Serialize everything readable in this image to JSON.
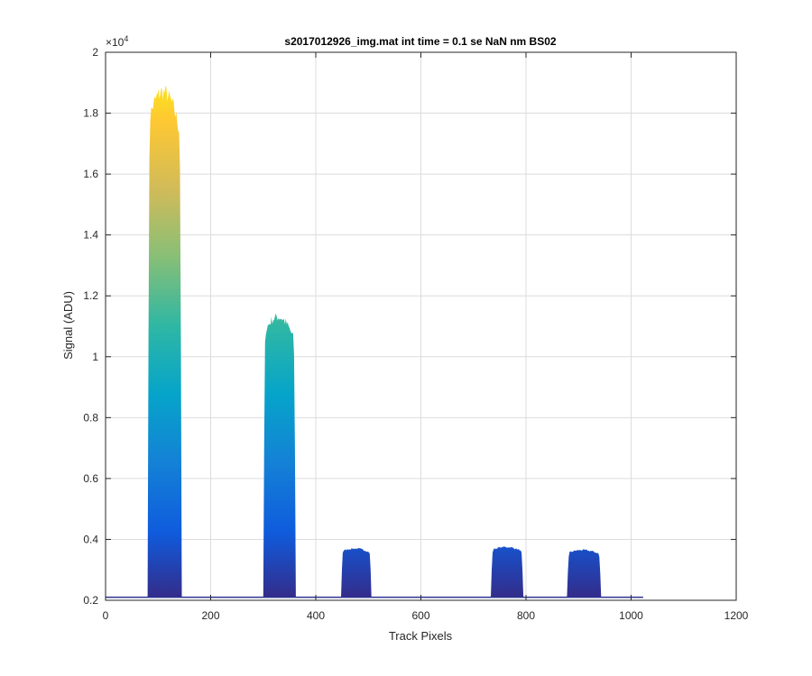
{
  "chart_data": {
    "type": "area",
    "title": "s2017012926_img.mat int time = 0.1 se  NaN nm BS02",
    "xlabel": "Track Pixels",
    "ylabel": "Signal (ADU)",
    "exponent_label": "×10",
    "exponent_power": "4",
    "xlim": [
      0,
      1200
    ],
    "ylim": [
      0.2,
      2.0
    ],
    "y_scale_factor": 10000,
    "grid": true,
    "x_ticks": [
      0,
      200,
      400,
      600,
      800,
      1000,
      1200
    ],
    "x_tick_labels": [
      "0",
      "200",
      "400",
      "600",
      "800",
      "1000",
      "1200"
    ],
    "y_ticks": [
      0.2,
      0.4,
      0.6,
      0.8,
      1.0,
      1.2,
      1.4,
      1.6,
      1.8,
      2.0
    ],
    "y_tick_labels": [
      "0.2",
      "0.4",
      "0.6",
      "0.8",
      "1",
      "1.2",
      "1.4",
      "1.6",
      "1.8",
      "2"
    ],
    "baseline": 0.21,
    "data_x_max": 1023,
    "peaks": [
      {
        "x_start": 80,
        "x_end": 145,
        "peak": 1.87
      },
      {
        "x_start": 300,
        "x_end": 362,
        "peak": 1.13
      },
      {
        "x_start": 448,
        "x_end": 506,
        "peak": 0.37
      },
      {
        "x_start": 733,
        "x_end": 795,
        "peak": 0.375
      },
      {
        "x_start": 878,
        "x_end": 943,
        "peak": 0.365
      }
    ],
    "colormap": [
      "#352a87",
      "#0f5cdd",
      "#1481d6",
      "#06a4ca",
      "#2eb7a4",
      "#87bf77",
      "#d1bb59",
      "#fec832",
      "#f9fb0e"
    ]
  }
}
